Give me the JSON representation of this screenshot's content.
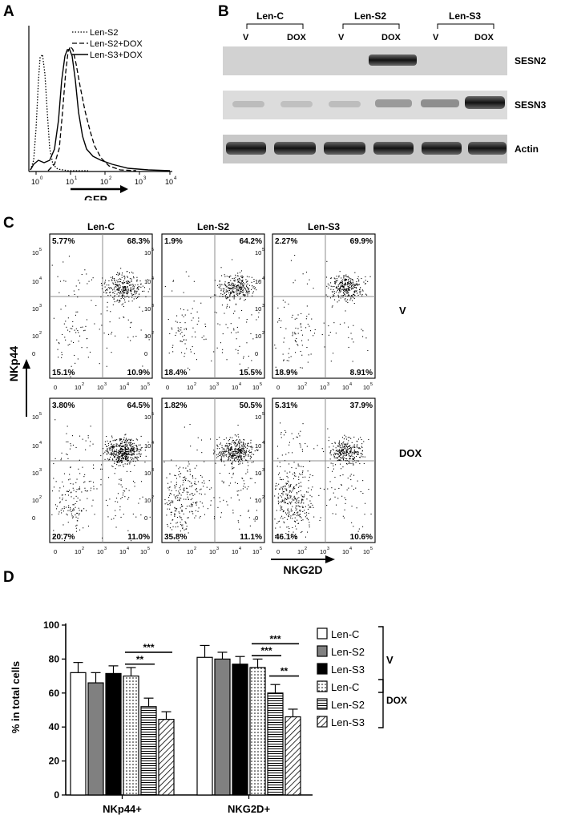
{
  "panels": {
    "a": "A",
    "b": "B",
    "c": "C",
    "d": "D"
  },
  "histogram": {
    "legend": [
      "Len-S2",
      "Len-S2+DOX",
      "Len-S3+DOX"
    ],
    "xticks": [
      "10",
      "10",
      "10",
      "10",
      "10"
    ],
    "xtick_exps": [
      "0",
      "1",
      "2",
      "3",
      "4"
    ],
    "xlabel": "GFP"
  },
  "blot": {
    "groups": [
      "Len-C",
      "Len-S2",
      "Len-S3"
    ],
    "lanes": [
      "V",
      "DOX",
      "V",
      "DOX",
      "V",
      "DOX"
    ],
    "proteins": [
      "SESN2",
      "SESN3",
      "Actin"
    ]
  },
  "flow": {
    "columns": [
      "Len-C",
      "Len-S2",
      "Len-S3"
    ],
    "rows": [
      "V",
      "DOX"
    ],
    "ylabel": "NKp44",
    "xlabel": "NKG2D",
    "quadrants": [
      [
        {
          "ul": "5.77%",
          "ur": "68.3%",
          "ll": "15.1%",
          "lr": "10.9%"
        },
        {
          "ul": "1.9%",
          "ur": "64.2%",
          "ll": "18.4%",
          "lr": "15.5%"
        },
        {
          "ul": "2.27%",
          "ur": "69.9%",
          "ll": "18.9%",
          "lr": "8.91%"
        }
      ],
      [
        {
          "ul": "3.80%",
          "ur": "64.5%",
          "ll": "20.7%",
          "lr": "11.0%"
        },
        {
          "ul": "1.82%",
          "ur": "50.5%",
          "ll": "35.8%",
          "lr": "11.1%"
        },
        {
          "ul": "5.31%",
          "ur": "37.9%",
          "ll": "46.1%",
          "lr": "10.6%"
        }
      ]
    ],
    "yticks": [
      "10",
      "10",
      "10",
      "10",
      "0"
    ],
    "ytick_exps": [
      "5",
      "4",
      "3",
      "2",
      ""
    ],
    "xticks": [
      "0",
      "10",
      "10",
      "10",
      "10"
    ],
    "xtick_exps": [
      "",
      "2",
      "3",
      "4",
      "5"
    ]
  },
  "chart_data": {
    "type": "bar",
    "categories": [
      "NKp44+",
      "NKG2D+"
    ],
    "ylabel": "% in total cells",
    "ylim": [
      0,
      100
    ],
    "yticks": [
      0,
      20,
      40,
      60,
      80,
      100
    ],
    "series": [
      {
        "name": "Len-C",
        "group": "V",
        "values": [
          72,
          81
        ],
        "errors": [
          6,
          7
        ]
      },
      {
        "name": "Len-S2",
        "group": "V",
        "values": [
          66,
          80
        ],
        "errors": [
          6,
          4
        ]
      },
      {
        "name": "Len-S3",
        "group": "V",
        "values": [
          71.5,
          77
        ],
        "errors": [
          4.5,
          4.5
        ]
      },
      {
        "name": "Len-C",
        "group": "DOX",
        "values": [
          70,
          75
        ],
        "errors": [
          5,
          5
        ]
      },
      {
        "name": "Len-S2",
        "group": "DOX",
        "values": [
          52,
          60
        ],
        "errors": [
          5,
          5
        ]
      },
      {
        "name": "Len-S3",
        "group": "DOX",
        "values": [
          44.5,
          46
        ],
        "errors": [
          4.5,
          4.5
        ]
      }
    ],
    "fills": [
      "#ffffff",
      "#808080",
      "#000000",
      "dots",
      "hlines",
      "diag"
    ],
    "legend_groups": [
      "V",
      "DOX"
    ],
    "significance": [
      {
        "category": 0,
        "from": 3,
        "to": 5,
        "label": "***",
        "y": 84
      },
      {
        "category": 0,
        "from": 3,
        "to": 4,
        "label": "**",
        "y": 77
      },
      {
        "category": 1,
        "from": 3,
        "to": 5,
        "label": "***",
        "y": 89
      },
      {
        "category": 1,
        "from": 3,
        "to": 4,
        "label": "***",
        "y": 82
      },
      {
        "category": 1,
        "from": 4,
        "to": 5,
        "label": "**",
        "y": 70
      }
    ]
  }
}
